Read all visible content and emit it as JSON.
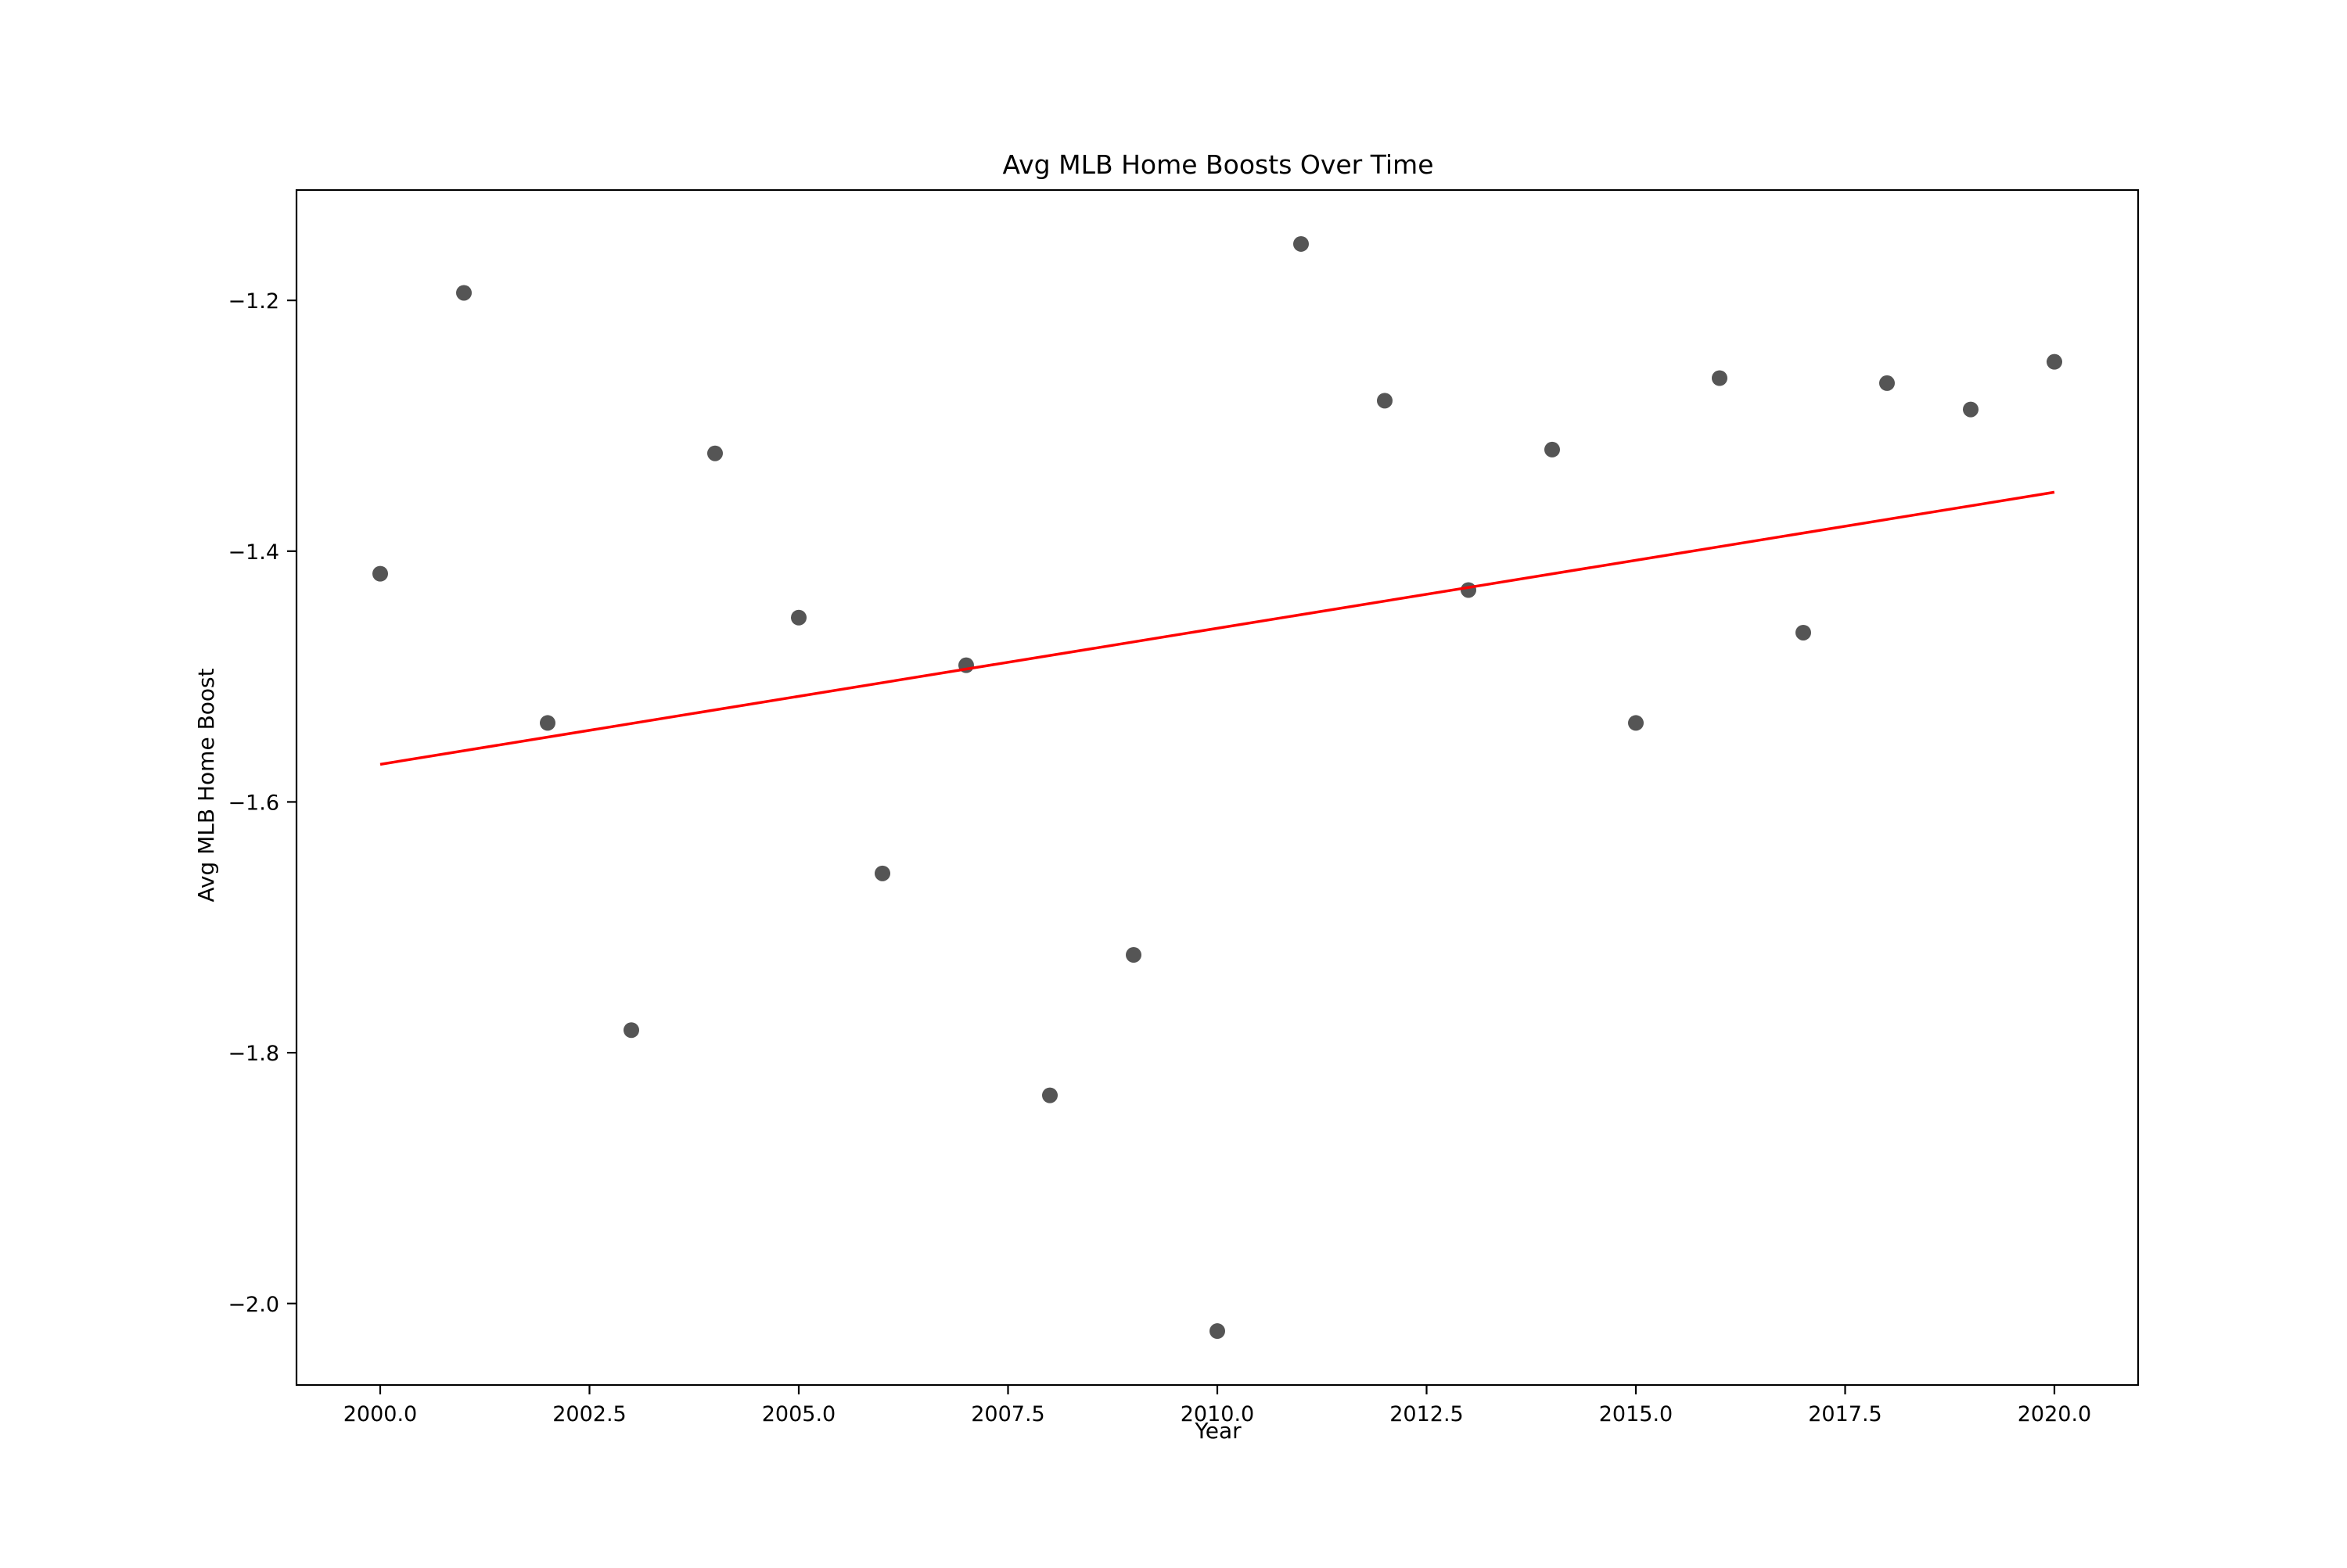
{
  "chart_data": {
    "type": "scatter",
    "title": "Avg MLB Home Boosts Over Time",
    "xlabel": "Year",
    "ylabel": "Avg MLB Home Boost",
    "xlim": [
      1999.0,
      2021.0
    ],
    "ylim": [
      -2.065,
      -1.112
    ],
    "xticks": [
      2000.0,
      2002.5,
      2005.0,
      2007.5,
      2010.0,
      2012.5,
      2015.0,
      2017.5,
      2020.0
    ],
    "xtick_labels": [
      "2000.0",
      "2002.5",
      "2005.0",
      "2007.5",
      "2010.0",
      "2012.5",
      "2015.0",
      "2017.5",
      "2020.0"
    ],
    "yticks": [
      -2.0,
      -1.8,
      -1.6,
      -1.4,
      -1.2
    ],
    "ytick_labels": [
      "−2.0",
      "−1.8",
      "−1.6",
      "−1.4",
      "−1.2"
    ],
    "grid": false,
    "legend": "none",
    "series": [
      {
        "kind": "scatter",
        "color": "#555555",
        "x": [
          2000,
          2001,
          2002,
          2003,
          2004,
          2005,
          2006,
          2007,
          2008,
          2009,
          2010,
          2011,
          2012,
          2013,
          2014,
          2015,
          2016,
          2017,
          2018,
          2019,
          2020
        ],
        "y": [
          -1.418,
          -1.194,
          -1.537,
          -1.782,
          -1.322,
          -1.453,
          -1.657,
          -1.491,
          -1.834,
          -1.722,
          -2.022,
          -1.155,
          -1.28,
          -1.431,
          -1.319,
          -1.537,
          -1.262,
          -1.465,
          -1.266,
          -1.287,
          -1.249
        ]
      },
      {
        "kind": "line",
        "color": "#ff0000",
        "x": [
          2000,
          2020
        ],
        "y": [
          -1.57,
          -1.353
        ]
      }
    ]
  }
}
